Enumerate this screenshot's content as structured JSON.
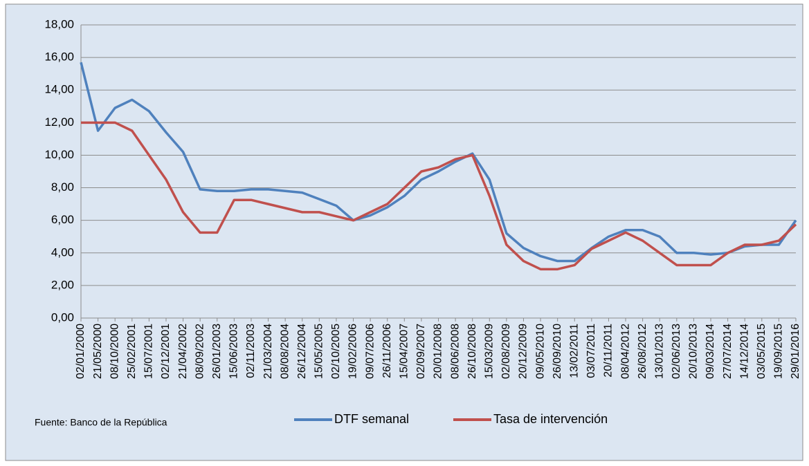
{
  "chart_data": {
    "type": "line",
    "categories": [
      "02/01/2000",
      "21/05/2000",
      "08/10/2000",
      "25/02/2001",
      "15/07/2001",
      "02/12/2001",
      "21/04/2002",
      "08/09/2002",
      "26/01/2003",
      "15/06/2003",
      "02/11/2003",
      "21/03/2004",
      "08/08/2004",
      "26/12/2004",
      "15/05/2005",
      "02/10/2005",
      "19/02/2006",
      "09/07/2006",
      "26/11/2006",
      "15/04/2007",
      "02/09/2007",
      "20/01/2008",
      "08/06/2008",
      "26/10/2008",
      "15/03/2009",
      "02/08/2009",
      "20/12/2009",
      "09/05/2010",
      "26/09/2010",
      "13/02/2011",
      "03/07/2011",
      "20/11/2011",
      "08/04/2012",
      "26/08/2012",
      "13/01/2013",
      "02/06/2013",
      "20/10/2013",
      "09/03/2014",
      "27/07/2014",
      "14/12/2014",
      "03/05/2015",
      "19/09/2015",
      "29/01/2016"
    ],
    "series": [
      {
        "name": "DTF semanal",
        "color": "#4f81bd",
        "values": [
          15.7,
          11.5,
          12.9,
          13.4,
          12.7,
          11.4,
          10.2,
          7.9,
          7.8,
          7.8,
          7.9,
          7.9,
          7.8,
          7.7,
          7.3,
          6.9,
          6.0,
          6.3,
          6.8,
          7.5,
          8.5,
          9.0,
          9.6,
          10.1,
          8.5,
          5.2,
          4.3,
          3.8,
          3.5,
          3.5,
          4.3,
          5.0,
          5.4,
          5.4,
          5.0,
          4.0,
          4.0,
          3.9,
          4.0,
          4.4,
          4.5,
          4.5,
          6.0
        ]
      },
      {
        "name": "Tasa de intervención",
        "color": "#c0504d",
        "values": [
          12,
          12,
          12,
          11.5,
          10,
          8.5,
          6.5,
          5.25,
          5.25,
          7.25,
          7.25,
          7.0,
          6.75,
          6.5,
          6.5,
          6.25,
          6.0,
          6.5,
          7.0,
          8.0,
          9.0,
          9.25,
          9.75,
          10.0,
          7.5,
          4.5,
          3.5,
          3.0,
          3.0,
          3.25,
          4.25,
          4.75,
          5.25,
          4.75,
          4.0,
          3.25,
          3.25,
          3.25,
          4.0,
          4.5,
          4.5,
          4.75,
          5.75
        ]
      }
    ],
    "ylim": [
      0,
      18
    ],
    "yticks": [
      {
        "value": 0,
        "label": "0,00"
      },
      {
        "value": 2,
        "label": "2,00"
      },
      {
        "value": 4,
        "label": "4,00"
      },
      {
        "value": 6,
        "label": "6,00"
      },
      {
        "value": 8,
        "label": "8,00"
      },
      {
        "value": 10,
        "label": "10,00"
      },
      {
        "value": 12,
        "label": "12,00"
      },
      {
        "value": 14,
        "label": "14,00"
      },
      {
        "value": 16,
        "label": "16,00"
      },
      {
        "value": 18,
        "label": "18,00"
      }
    ],
    "grid": true,
    "source": "Fuente: Banco de la República",
    "legend": "bottom"
  }
}
